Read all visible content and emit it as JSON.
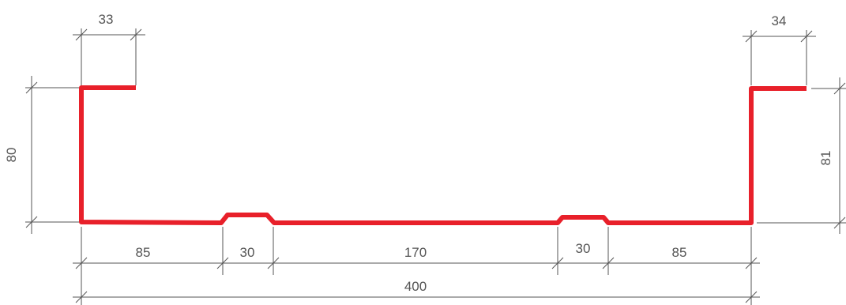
{
  "profile": {
    "color": "#e8202a"
  },
  "dimensions": {
    "top_left_flange": "33",
    "top_right_flange": "34",
    "left_height": "80",
    "right_height": "81",
    "bottom_segments": [
      "85",
      "30",
      "170",
      "30",
      "85"
    ],
    "total_width": "400"
  },
  "dimension_line_color": "#555555"
}
